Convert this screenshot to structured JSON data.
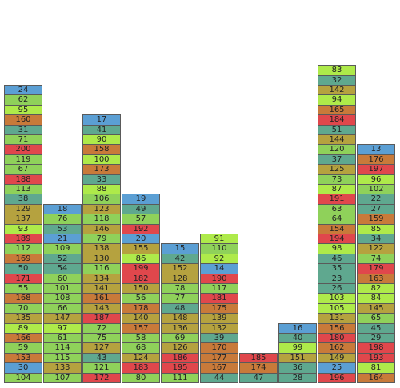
{
  "palette": {
    "blue": "#5b9fd4",
    "green": "#8fd15a",
    "lime": "#aeea4a",
    "olive": "#b5a23f",
    "orange": "#c87a3a",
    "red": "#e0474c",
    "teal": "#5fa88f"
  },
  "columns": [
    {
      "blocks": [
        {
          "v": "104",
          "c": "green"
        },
        {
          "v": "30",
          "c": "blue"
        },
        {
          "v": "153",
          "c": "orange"
        },
        {
          "v": "59",
          "c": "green"
        },
        {
          "v": "166",
          "c": "orange"
        },
        {
          "v": "89",
          "c": "lime"
        },
        {
          "v": "135",
          "c": "olive"
        },
        {
          "v": "70",
          "c": "green"
        },
        {
          "v": "168",
          "c": "orange"
        },
        {
          "v": "55",
          "c": "green"
        },
        {
          "v": "171",
          "c": "red"
        },
        {
          "v": "50",
          "c": "teal"
        },
        {
          "v": "169",
          "c": "orange"
        },
        {
          "v": "112",
          "c": "green"
        },
        {
          "v": "189",
          "c": "red"
        },
        {
          "v": "93",
          "c": "lime"
        },
        {
          "v": "137",
          "c": "olive"
        },
        {
          "v": "129",
          "c": "olive"
        },
        {
          "v": "38",
          "c": "teal"
        },
        {
          "v": "113",
          "c": "green"
        },
        {
          "v": "188",
          "c": "red"
        },
        {
          "v": "67",
          "c": "green"
        },
        {
          "v": "119",
          "c": "green"
        },
        {
          "v": "200",
          "c": "red"
        },
        {
          "v": "71",
          "c": "green"
        },
        {
          "v": "31",
          "c": "teal"
        },
        {
          "v": "160",
          "c": "orange"
        },
        {
          "v": "95",
          "c": "lime"
        },
        {
          "v": "62",
          "c": "green"
        },
        {
          "v": "24",
          "c": "blue"
        }
      ]
    },
    {
      "blocks": [
        {
          "v": "107",
          "c": "green"
        },
        {
          "v": "133",
          "c": "olive"
        },
        {
          "v": "115",
          "c": "green"
        },
        {
          "v": "114",
          "c": "green"
        },
        {
          "v": "61",
          "c": "green"
        },
        {
          "v": "97",
          "c": "lime"
        },
        {
          "v": "147",
          "c": "olive"
        },
        {
          "v": "66",
          "c": "green"
        },
        {
          "v": "108",
          "c": "green"
        },
        {
          "v": "101",
          "c": "green"
        },
        {
          "v": "60",
          "c": "green"
        },
        {
          "v": "54",
          "c": "teal"
        },
        {
          "v": "52",
          "c": "teal"
        },
        {
          "v": "109",
          "c": "green"
        },
        {
          "v": "21",
          "c": "blue"
        },
        {
          "v": "53",
          "c": "teal"
        },
        {
          "v": "76",
          "c": "green"
        },
        {
          "v": "18",
          "c": "blue"
        }
      ]
    },
    {
      "blocks": [
        {
          "v": "172",
          "c": "red"
        },
        {
          "v": "121",
          "c": "green"
        },
        {
          "v": "43",
          "c": "teal"
        },
        {
          "v": "127",
          "c": "olive"
        },
        {
          "v": "75",
          "c": "green"
        },
        {
          "v": "72",
          "c": "green"
        },
        {
          "v": "187",
          "c": "red"
        },
        {
          "v": "143",
          "c": "olive"
        },
        {
          "v": "161",
          "c": "orange"
        },
        {
          "v": "141",
          "c": "olive"
        },
        {
          "v": "134",
          "c": "olive"
        },
        {
          "v": "116",
          "c": "green"
        },
        {
          "v": "130",
          "c": "olive"
        },
        {
          "v": "138",
          "c": "olive"
        },
        {
          "v": "79",
          "c": "green"
        },
        {
          "v": "146",
          "c": "olive"
        },
        {
          "v": "118",
          "c": "green"
        },
        {
          "v": "123",
          "c": "olive"
        },
        {
          "v": "106",
          "c": "green"
        },
        {
          "v": "88",
          "c": "lime"
        },
        {
          "v": "33",
          "c": "teal"
        },
        {
          "v": "173",
          "c": "orange"
        },
        {
          "v": "100",
          "c": "lime"
        },
        {
          "v": "158",
          "c": "orange"
        },
        {
          "v": "90",
          "c": "lime"
        },
        {
          "v": "41",
          "c": "teal"
        },
        {
          "v": "17",
          "c": "blue"
        }
      ]
    },
    {
      "blocks": [
        {
          "v": "80",
          "c": "green"
        },
        {
          "v": "183",
          "c": "red"
        },
        {
          "v": "124",
          "c": "olive"
        },
        {
          "v": "68",
          "c": "green"
        },
        {
          "v": "58",
          "c": "green"
        },
        {
          "v": "157",
          "c": "orange"
        },
        {
          "v": "140",
          "c": "olive"
        },
        {
          "v": "178",
          "c": "orange"
        },
        {
          "v": "56",
          "c": "green"
        },
        {
          "v": "150",
          "c": "olive"
        },
        {
          "v": "182",
          "c": "red"
        },
        {
          "v": "199",
          "c": "red"
        },
        {
          "v": "86",
          "c": "lime"
        },
        {
          "v": "155",
          "c": "olive"
        },
        {
          "v": "20",
          "c": "blue"
        },
        {
          "v": "192",
          "c": "red"
        },
        {
          "v": "57",
          "c": "green"
        },
        {
          "v": "49",
          "c": "teal"
        },
        {
          "v": "19",
          "c": "blue"
        }
      ]
    },
    {
      "blocks": [
        {
          "v": "111",
          "c": "green"
        },
        {
          "v": "195",
          "c": "red"
        },
        {
          "v": "186",
          "c": "red"
        },
        {
          "v": "126",
          "c": "olive"
        },
        {
          "v": "69",
          "c": "green"
        },
        {
          "v": "136",
          "c": "olive"
        },
        {
          "v": "148",
          "c": "olive"
        },
        {
          "v": "48",
          "c": "teal"
        },
        {
          "v": "77",
          "c": "green"
        },
        {
          "v": "78",
          "c": "green"
        },
        {
          "v": "128",
          "c": "olive"
        },
        {
          "v": "152",
          "c": "olive"
        },
        {
          "v": "42",
          "c": "teal"
        },
        {
          "v": "15",
          "c": "blue"
        }
      ]
    },
    {
      "blocks": [
        {
          "v": "44",
          "c": "teal"
        },
        {
          "v": "167",
          "c": "orange"
        },
        {
          "v": "177",
          "c": "orange"
        },
        {
          "v": "170",
          "c": "orange"
        },
        {
          "v": "39",
          "c": "teal"
        },
        {
          "v": "132",
          "c": "olive"
        },
        {
          "v": "139",
          "c": "olive"
        },
        {
          "v": "175",
          "c": "orange"
        },
        {
          "v": "181",
          "c": "red"
        },
        {
          "v": "117",
          "c": "green"
        },
        {
          "v": "190",
          "c": "red"
        },
        {
          "v": "14",
          "c": "blue"
        },
        {
          "v": "92",
          "c": "lime"
        },
        {
          "v": "110",
          "c": "green"
        },
        {
          "v": "91",
          "c": "lime"
        }
      ]
    },
    {
      "blocks": [
        {
          "v": "47",
          "c": "teal"
        },
        {
          "v": "174",
          "c": "orange"
        },
        {
          "v": "185",
          "c": "red"
        }
      ]
    },
    {
      "blocks": [
        {
          "v": "28",
          "c": "teal"
        },
        {
          "v": "36",
          "c": "teal"
        },
        {
          "v": "151",
          "c": "olive"
        },
        {
          "v": "99",
          "c": "lime"
        },
        {
          "v": "40",
          "c": "teal"
        },
        {
          "v": "16",
          "c": "blue"
        }
      ]
    },
    {
      "blocks": [
        {
          "v": "196",
          "c": "red"
        },
        {
          "v": "25",
          "c": "blue"
        },
        {
          "v": "149",
          "c": "olive"
        },
        {
          "v": "162",
          "c": "orange"
        },
        {
          "v": "180",
          "c": "red"
        },
        {
          "v": "156",
          "c": "orange"
        },
        {
          "v": "131",
          "c": "olive"
        },
        {
          "v": "105",
          "c": "lime"
        },
        {
          "v": "103",
          "c": "lime"
        },
        {
          "v": "26",
          "c": "teal"
        },
        {
          "v": "23",
          "c": "teal"
        },
        {
          "v": "35",
          "c": "teal"
        },
        {
          "v": "46",
          "c": "teal"
        },
        {
          "v": "98",
          "c": "lime"
        },
        {
          "v": "194",
          "c": "red"
        },
        {
          "v": "154",
          "c": "orange"
        },
        {
          "v": "64",
          "c": "green"
        },
        {
          "v": "63",
          "c": "green"
        },
        {
          "v": "191",
          "c": "red"
        },
        {
          "v": "87",
          "c": "lime"
        },
        {
          "v": "73",
          "c": "green"
        },
        {
          "v": "125",
          "c": "olive"
        },
        {
          "v": "37",
          "c": "teal"
        },
        {
          "v": "120",
          "c": "green"
        },
        {
          "v": "144",
          "c": "olive"
        },
        {
          "v": "51",
          "c": "teal"
        },
        {
          "v": "184",
          "c": "red"
        },
        {
          "v": "165",
          "c": "orange"
        },
        {
          "v": "94",
          "c": "lime"
        },
        {
          "v": "142",
          "c": "olive"
        },
        {
          "v": "32",
          "c": "teal"
        },
        {
          "v": "83",
          "c": "lime"
        }
      ]
    },
    {
      "blocks": [
        {
          "v": "164",
          "c": "orange"
        },
        {
          "v": "81",
          "c": "lime"
        },
        {
          "v": "193",
          "c": "red"
        },
        {
          "v": "198",
          "c": "red"
        },
        {
          "v": "29",
          "c": "teal"
        },
        {
          "v": "45",
          "c": "teal"
        },
        {
          "v": "65",
          "c": "green"
        },
        {
          "v": "145",
          "c": "olive"
        },
        {
          "v": "84",
          "c": "lime"
        },
        {
          "v": "82",
          "c": "lime"
        },
        {
          "v": "163",
          "c": "orange"
        },
        {
          "v": "179",
          "c": "red"
        },
        {
          "v": "74",
          "c": "green"
        },
        {
          "v": "122",
          "c": "olive"
        },
        {
          "v": "34",
          "c": "teal"
        },
        {
          "v": "85",
          "c": "lime"
        },
        {
          "v": "159",
          "c": "orange"
        },
        {
          "v": "27",
          "c": "teal"
        },
        {
          "v": "22",
          "c": "teal"
        },
        {
          "v": "102",
          "c": "green"
        },
        {
          "v": "96",
          "c": "lime"
        },
        {
          "v": "197",
          "c": "red"
        },
        {
          "v": "176",
          "c": "orange"
        },
        {
          "v": "13",
          "c": "blue"
        }
      ]
    }
  ]
}
